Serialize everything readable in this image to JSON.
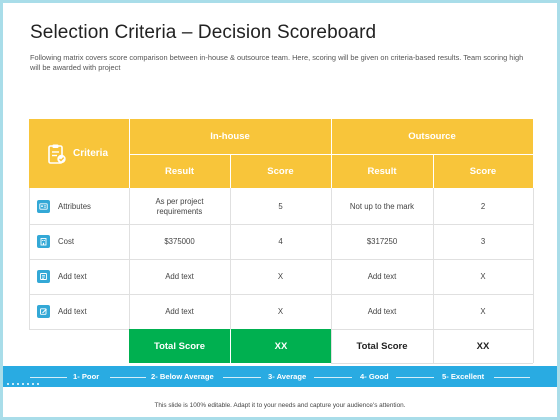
{
  "title": "Selection Criteria – Decision Scoreboard",
  "subtitle": "Following matrix covers score comparison between in-house & outsource team. Here, scoring will be given on criteria-based results. Team scoring high will be awarded with project",
  "table": {
    "criteria_header": "Criteria",
    "groups": [
      "In-house",
      "Outsource"
    ],
    "sub_headers": [
      "Result",
      "Score",
      "Result",
      "Score"
    ],
    "rows": [
      {
        "label": "Attributes",
        "icon": "id-card-icon",
        "cells": [
          "As per project requirements",
          "5",
          "Not up to the mark",
          "2"
        ]
      },
      {
        "label": "Cost",
        "icon": "building-icon",
        "cells": [
          "$375000",
          "4",
          "$317250",
          "3"
        ]
      },
      {
        "label": "Add text",
        "icon": "document-icon",
        "cells": [
          "Add text",
          "X",
          "Add text",
          "X"
        ]
      },
      {
        "label": "Add text",
        "icon": "edit-icon",
        "cells": [
          "Add text",
          "X",
          "Add text",
          "X"
        ]
      }
    ],
    "totals": [
      {
        "label": "Total Score",
        "value": "XX"
      },
      {
        "label": "Total Score",
        "value": "XX"
      }
    ]
  },
  "rating_scale": [
    "1- Poor",
    "2- Below Average",
    "3- Average",
    "4- Good",
    "5- Excellent"
  ],
  "footer": "This slide is 100% editable. Adapt it to your needs and capture your audience's attention.",
  "colors": {
    "header": "#f8c53a",
    "green": "#00b050",
    "blue": "#29abe2",
    "border": "#a9dde9"
  }
}
